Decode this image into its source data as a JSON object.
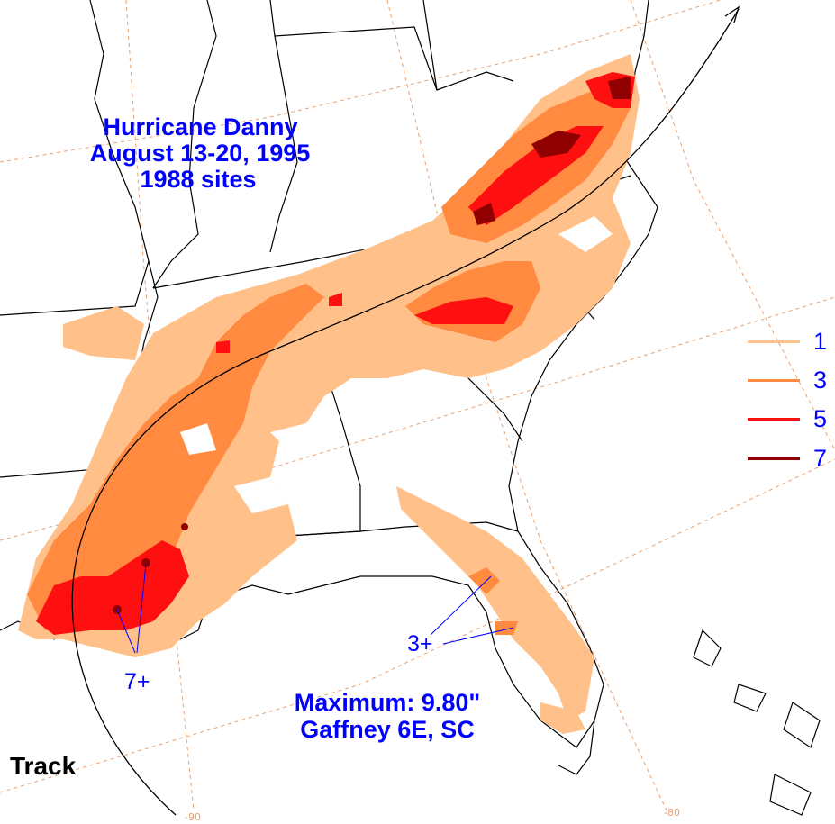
{
  "title": {
    "line1": "Hurricane Danny",
    "line2": "August 13-20, 1995",
    "line3": "1988 sites"
  },
  "legend": {
    "items": [
      {
        "label": "1",
        "color": "#ffc08a"
      },
      {
        "label": "3",
        "color": "#ff8a40"
      },
      {
        "label": "5",
        "color": "#ff1010"
      },
      {
        "label": "7",
        "color": "#900000"
      }
    ]
  },
  "annotations": {
    "gulf_coast_max": "7+",
    "florida_max": "3+"
  },
  "maximum": {
    "line1": "Maximum: 9.80\"",
    "line2": "Gaffney 6E, SC"
  },
  "track_label": "Track",
  "longitude_labels": [
    "-90",
    "-80"
  ],
  "colors": {
    "text": "#0000ff",
    "grid": "#e8a070",
    "boundaries": "#000000",
    "contour_1": "#ffc08a",
    "contour_3": "#ff8a40",
    "contour_5": "#ff1010",
    "contour_7": "#900000"
  }
}
